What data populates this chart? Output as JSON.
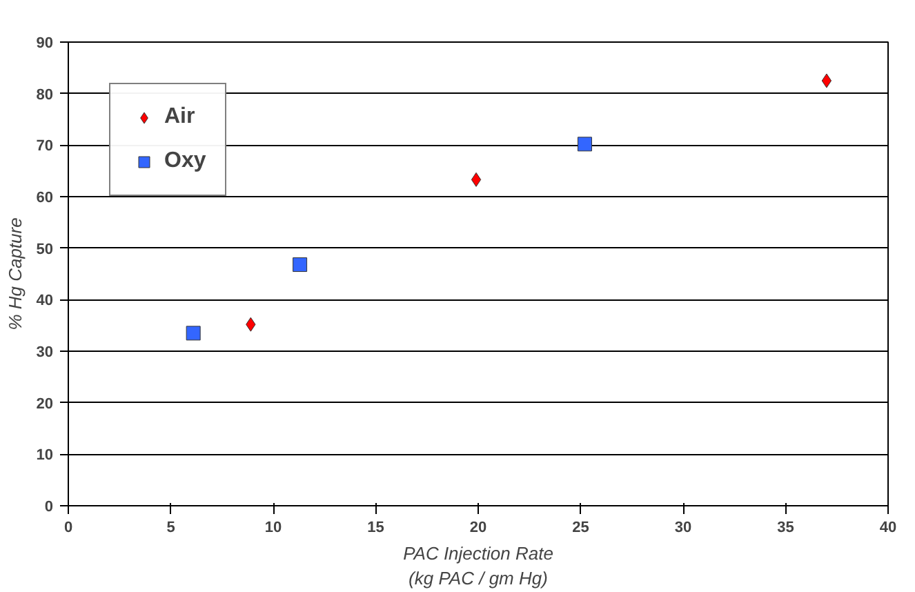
{
  "chart_data": {
    "type": "scatter",
    "xlabel": "PAC Injection Rate\n(kg PAC / gm Hg)",
    "ylabel": "% Hg Capture",
    "series": [
      {
        "name": "Air",
        "color": "#ff0000",
        "marker": "diamond",
        "x": [
          8.9,
          19.9,
          37
        ],
        "values": [
          35.2,
          63.3,
          82.5
        ]
      },
      {
        "name": "Oxy",
        "color": "#3366ff",
        "marker": "square",
        "x": [
          6.1,
          11.3,
          25.2
        ],
        "values": [
          33.5,
          46.8,
          70.2
        ]
      }
    ],
    "xlim": [
      0,
      40
    ],
    "xticks": [
      0,
      5,
      10,
      15,
      20,
      25,
      30,
      35,
      40
    ],
    "ylim": [
      0,
      90
    ],
    "yticks": [
      0,
      10,
      20,
      30,
      40,
      50,
      60,
      70,
      80,
      90
    ],
    "grid": "y",
    "legend": "top left"
  }
}
